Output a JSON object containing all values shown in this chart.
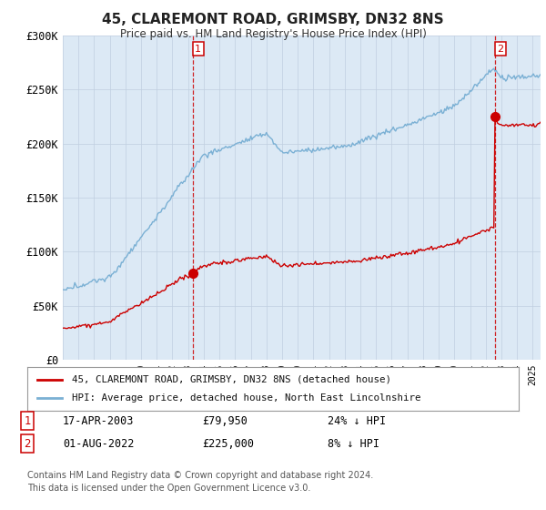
{
  "title": "45, CLAREMONT ROAD, GRIMSBY, DN32 8NS",
  "subtitle": "Price paid vs. HM Land Registry's House Price Index (HPI)",
  "ylabel_ticks": [
    "£0",
    "£50K",
    "£100K",
    "£150K",
    "£200K",
    "£250K",
    "£300K"
  ],
  "ylim": [
    0,
    300000
  ],
  "xlim_start": 1995.0,
  "xlim_end": 2025.5,
  "sale1_year": 2003.29,
  "sale1_price": 79950,
  "sale2_year": 2022.58,
  "sale2_price": 225000,
  "legend_label_red": "45, CLAREMONT ROAD, GRIMSBY, DN32 8NS (detached house)",
  "legend_label_blue": "HPI: Average price, detached house, North East Lincolnshire",
  "annotation1_date": "17-APR-2003",
  "annotation1_price": "£79,950",
  "annotation1_hpi": "24% ↓ HPI",
  "annotation2_date": "01-AUG-2022",
  "annotation2_price": "£225,000",
  "annotation2_hpi": "8% ↓ HPI",
  "footer": "Contains HM Land Registry data © Crown copyright and database right 2024.\nThis data is licensed under the Open Government Licence v3.0.",
  "line_red": "#cc0000",
  "line_blue": "#7ab0d4",
  "bg_color": "#ffffff",
  "chart_bg_color": "#dce9f5",
  "grid_color": "#c0cfe0",
  "marker_box_color": "#cc0000"
}
